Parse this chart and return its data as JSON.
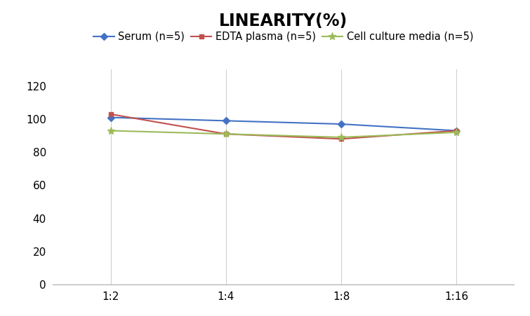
{
  "title": "LINEARITY(%)",
  "x_labels": [
    "1:2",
    "1:4",
    "1:8",
    "1:16"
  ],
  "x_positions": [
    0,
    1,
    2,
    3
  ],
  "series": [
    {
      "label": "Serum (n=5)",
      "values": [
        101,
        99,
        97,
        93
      ],
      "color": "#4472C4",
      "marker": "D",
      "markersize": 5,
      "linewidth": 1.5
    },
    {
      "label": "EDTA plasma (n=5)",
      "values": [
        103,
        91,
        88,
        93
      ],
      "color": "#C0504D",
      "marker": "s",
      "markersize": 5,
      "linewidth": 1.5
    },
    {
      "label": "Cell culture media (n=5)",
      "values": [
        93,
        91,
        89,
        92
      ],
      "color": "#9BBB59",
      "marker": "*",
      "markersize": 8,
      "linewidth": 1.5
    }
  ],
  "ylim": [
    0,
    130
  ],
  "yticks": [
    0,
    20,
    40,
    60,
    80,
    100,
    120
  ],
  "background_color": "#ffffff",
  "title_fontsize": 17,
  "legend_fontsize": 10.5,
  "tick_fontsize": 11,
  "grid_color": "#d0d0d0",
  "grid_linewidth": 0.8
}
